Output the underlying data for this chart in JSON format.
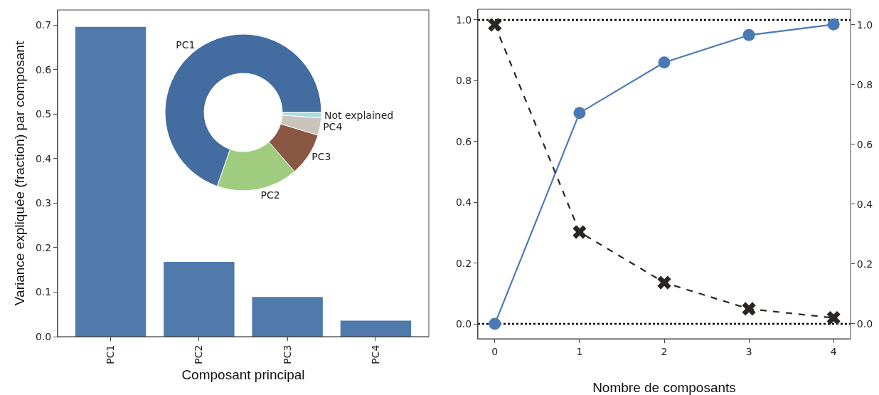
{
  "chart_data": [
    {
      "type": "bar",
      "xlabel": "Composant principal",
      "ylabel": "Variance expliquée (fraction) par composant",
      "categories": [
        "PC1",
        "PC2",
        "PC3",
        "PC4"
      ],
      "values": [
        0.696,
        0.168,
        0.089,
        0.036
      ],
      "color": "#4f7aab",
      "ylim": [
        0,
        0.734
      ],
      "yticks": [
        {
          "value": 0,
          "label": "0.0"
        },
        {
          "value": 0.1,
          "label": "0.1"
        },
        {
          "value": 0.2,
          "label": "0.2"
        },
        {
          "value": 0.3,
          "label": "0.3"
        },
        {
          "value": 0.4,
          "label": "0.4"
        },
        {
          "value": 0.5,
          "label": "0.5"
        },
        {
          "value": 0.6,
          "label": "0.6"
        },
        {
          "value": 0.7,
          "label": "0.7"
        }
      ],
      "grid": false
    },
    {
      "type": "donut",
      "categories": [
        "PC1",
        "PC2",
        "PC3",
        "PC4",
        "Not explained"
      ],
      "values": [
        69.6,
        16.8,
        8.9,
        3.6,
        1.1
      ],
      "colors": [
        "#436ca0",
        "#9fcc7f",
        "#8b5745",
        "#cbc4bc",
        "#a9dce0"
      ]
    },
    {
      "type": "line",
      "xlabel": "Nombre de composants",
      "x": [
        0,
        1,
        2,
        3,
        4
      ],
      "series": [
        {
          "color": "#4a7ab5",
          "values": [
            0,
            0.694,
            0.86,
            0.95,
            0.985
          ],
          "marker": "circle",
          "line_style": "solid"
        },
        {
          "color": "#2b2622",
          "values": [
            1.0,
            0.307,
            0.138,
            0.05,
            0.02
          ],
          "marker": "cross",
          "line_style": "dashed",
          "axis": "y2"
        }
      ],
      "xlim": [
        -0.2,
        4.2
      ],
      "xticks": [
        0,
        1,
        2,
        3,
        4
      ],
      "ylim": [
        -0.049,
        1.035
      ],
      "yticks": [
        {
          "value": 0,
          "label": "0.0"
        },
        {
          "value": 0.2,
          "label": "0.2"
        },
        {
          "value": 0.4,
          "label": "0.4"
        },
        {
          "value": 0.6,
          "label": "0.6"
        },
        {
          "value": 0.8,
          "label": "0.8"
        },
        {
          "value": 1,
          "label": "1.0"
        }
      ],
      "y2lim": [
        -0.05,
        1.052
      ],
      "y2ticks": [
        {
          "value": 0,
          "label": "0.0"
        },
        {
          "value": 0.2,
          "label": "0.2"
        },
        {
          "value": 0.4,
          "label": "0.4"
        },
        {
          "value": 0.6,
          "label": "0.6"
        },
        {
          "value": 0.8,
          "label": "0.8"
        },
        {
          "value": 1,
          "label": "1.0"
        }
      ],
      "ref_lines": [
        {
          "axis": "y",
          "value": 0,
          "color": "#000000",
          "line_style": "dotted"
        },
        {
          "axis": "y",
          "value": 1,
          "color": "#000000",
          "line_style": "dotted"
        }
      ],
      "grid": false
    }
  ]
}
